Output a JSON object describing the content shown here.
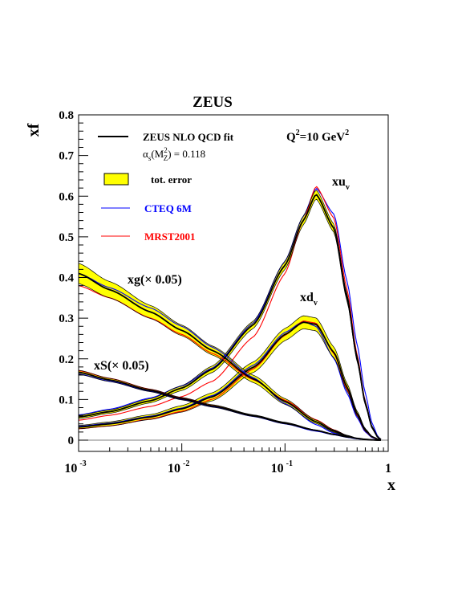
{
  "chart_data": {
    "type": "line",
    "title": "ZEUS",
    "xlabel": "x",
    "ylabel": "xf",
    "xscale": "log",
    "xlim": [
      0.001,
      1
    ],
    "ylim": [
      0,
      0.8
    ],
    "x_ticks": [
      {
        "base": "10",
        "exp": "-3",
        "value": 0.001
      },
      {
        "base": "10",
        "exp": "-2",
        "value": 0.01
      },
      {
        "base": "10",
        "exp": "-1",
        "value": 0.1
      },
      {
        "base": "1",
        "exp": "",
        "value": 1
      }
    ],
    "y_ticks": [
      "0",
      "0.1",
      "0.2",
      "0.3",
      "0.4",
      "0.5",
      "0.6",
      "0.7",
      "0.8"
    ],
    "grid": false,
    "colors": {
      "fit": "#000000",
      "band": "#ffff00",
      "band_edge": "#e0d000",
      "cteq": "#0000ff",
      "mrst": "#ff0000"
    },
    "legend": {
      "position": "top-left",
      "fit_label": "ZEUS NLO QCD fit",
      "alpha_label": "α",
      "alpha_sub": "s",
      "alpha_arg_open": "(M",
      "alpha_arg_sup": "2",
      "alpha_arg_sub": "Z",
      "alpha_arg_close": ") = 0.118",
      "band_label": "tot. error",
      "cteq_label": "CTEQ 6M",
      "mrst_label": "MRST2001"
    },
    "q2": {
      "prefix": "Q",
      "sup": "2",
      "value": "=10 GeV",
      "unit_sup": "2"
    },
    "curve_labels": {
      "xuv": {
        "base": "xu",
        "sub": "v"
      },
      "xdv": {
        "base": "xd",
        "sub": "v"
      },
      "xg": "xg(× 0.05)",
      "xs": "xS(× 0.05)"
    },
    "series": [
      {
        "id": "xuv",
        "x": [
          0.001,
          0.002,
          0.005,
          0.01,
          0.02,
          0.05,
          0.1,
          0.15,
          0.2,
          0.3,
          0.4,
          0.5,
          0.6,
          0.7,
          0.8,
          0.85
        ],
        "fit": [
          0.057,
          0.07,
          0.097,
          0.128,
          0.175,
          0.285,
          0.43,
          0.54,
          0.605,
          0.52,
          0.35,
          0.2,
          0.09,
          0.03,
          0.006,
          0.002
        ],
        "err": [
          0.004,
          0.004,
          0.005,
          0.006,
          0.008,
          0.009,
          0.01,
          0.011,
          0.011,
          0.01,
          0.009,
          0.007,
          0.005,
          0.003,
          0.001,
          0.0005
        ],
        "cteq": [
          0.062,
          0.076,
          0.104,
          0.133,
          0.178,
          0.29,
          0.44,
          0.55,
          0.62,
          0.555,
          0.39,
          0.235,
          0.115,
          0.04,
          0.008,
          0.002
        ],
        "mrst": [
          0.049,
          0.061,
          0.083,
          0.107,
          0.145,
          0.255,
          0.41,
          0.54,
          0.625,
          0.545,
          0.37,
          0.21,
          0.095,
          0.03,
          0.006,
          0.002
        ]
      },
      {
        "id": "xdv",
        "x": [
          0.001,
          0.002,
          0.005,
          0.01,
          0.02,
          0.05,
          0.1,
          0.15,
          0.2,
          0.3,
          0.4,
          0.5,
          0.6,
          0.7,
          0.8,
          0.85
        ],
        "fit": [
          0.032,
          0.04,
          0.057,
          0.077,
          0.107,
          0.18,
          0.26,
          0.29,
          0.285,
          0.215,
          0.13,
          0.065,
          0.025,
          0.008,
          0.002,
          0.001
        ],
        "err": [
          0.004,
          0.005,
          0.006,
          0.008,
          0.01,
          0.013,
          0.015,
          0.016,
          0.016,
          0.013,
          0.009,
          0.006,
          0.003,
          0.001,
          0.0005,
          0.0003
        ],
        "cteq": [
          0.034,
          0.042,
          0.059,
          0.079,
          0.11,
          0.185,
          0.265,
          0.292,
          0.28,
          0.2,
          0.115,
          0.055,
          0.02,
          0.006,
          0.001,
          0.0005
        ],
        "mrst": [
          0.028,
          0.035,
          0.052,
          0.071,
          0.101,
          0.176,
          0.258,
          0.293,
          0.288,
          0.212,
          0.125,
          0.06,
          0.022,
          0.007,
          0.001,
          0.0005
        ]
      },
      {
        "id": "xg",
        "x": [
          0.001,
          0.002,
          0.005,
          0.01,
          0.02,
          0.05,
          0.1,
          0.2,
          0.3,
          0.4,
          0.5,
          0.6,
          0.7,
          0.8,
          0.85
        ],
        "fit": [
          0.41,
          0.37,
          0.315,
          0.27,
          0.22,
          0.15,
          0.095,
          0.045,
          0.022,
          0.01,
          0.004,
          0.0015,
          0.0005,
          0.0001,
          0.0
        ],
        "err": [
          0.025,
          0.02,
          0.016,
          0.013,
          0.011,
          0.009,
          0.007,
          0.004,
          0.003,
          0.002,
          0.001,
          0.0005,
          0.0002,
          0.0,
          0.0
        ],
        "cteq": [
          0.41,
          0.375,
          0.325,
          0.28,
          0.228,
          0.153,
          0.09,
          0.038,
          0.017,
          0.007,
          0.003,
          0.001,
          0.0003,
          0.0001,
          0.0
        ],
        "mrst": [
          0.38,
          0.35,
          0.3,
          0.26,
          0.213,
          0.148,
          0.098,
          0.05,
          0.025,
          0.011,
          0.004,
          0.0015,
          0.0005,
          0.0001,
          0.0
        ]
      },
      {
        "id": "xs",
        "x": [
          0.001,
          0.002,
          0.005,
          0.01,
          0.02,
          0.05,
          0.1,
          0.2,
          0.3,
          0.4,
          0.5,
          0.6,
          0.7,
          0.8,
          0.85
        ],
        "fit": [
          0.167,
          0.148,
          0.122,
          0.102,
          0.084,
          0.06,
          0.042,
          0.024,
          0.014,
          0.008,
          0.0045,
          0.002,
          0.0008,
          0.0002,
          0.0
        ],
        "err": [
          0.005,
          0.004,
          0.003,
          0.003,
          0.003,
          0.002,
          0.002,
          0.001,
          0.001,
          0.0005,
          0.0003,
          0.0002,
          0.0001,
          0.0,
          0.0
        ],
        "cteq": [
          0.163,
          0.145,
          0.12,
          0.1,
          0.082,
          0.058,
          0.04,
          0.022,
          0.013,
          0.007,
          0.004,
          0.0018,
          0.0007,
          0.0002,
          0.0
        ],
        "mrst": [
          0.171,
          0.152,
          0.125,
          0.104,
          0.085,
          0.06,
          0.042,
          0.024,
          0.014,
          0.008,
          0.0045,
          0.002,
          0.0008,
          0.0002,
          0.0
        ]
      }
    ]
  }
}
